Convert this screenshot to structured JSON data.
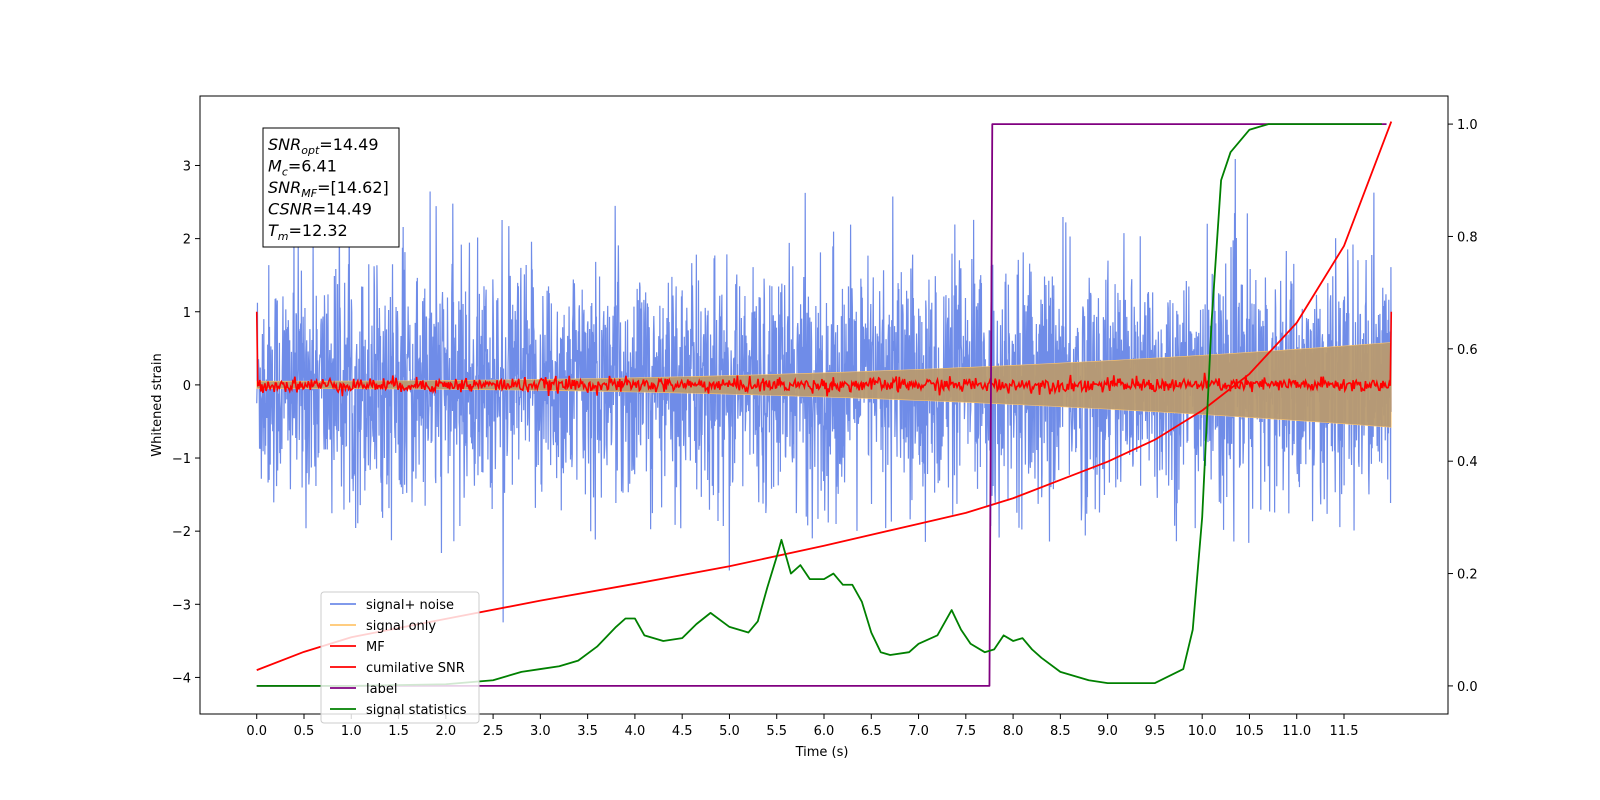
{
  "chart_data": {
    "type": "line",
    "title": "",
    "xlabel": "Time (s)",
    "ylabel_left": "Whitened strain",
    "ylabel_right": "",
    "xlim": [
      -0.6,
      12.6
    ],
    "ylim_left": [
      -4.5,
      3.95
    ],
    "ylim_right": [
      -0.05,
      1.05
    ],
    "x_ticks": [
      "0.0",
      "0.5",
      "1.0",
      "1.5",
      "2.0",
      "2.5",
      "3.0",
      "3.5",
      "4.0",
      "4.5",
      "5.0",
      "5.5",
      "6.0",
      "6.5",
      "7.0",
      "7.5",
      "8.0",
      "8.5",
      "9.0",
      "9.5",
      "10.0",
      "10.5",
      "11.0",
      "11.5"
    ],
    "y_ticks_left": [
      "3",
      "2",
      "1",
      "0",
      "−1",
      "−2",
      "−3",
      "−4"
    ],
    "y_ticks_right": [
      "1.0",
      "0.8",
      "0.6",
      "0.4",
      "0.2",
      "0.0"
    ],
    "legend_placement": "lower-left",
    "grid": false,
    "info_box": [
      {
        "sym": "SNR",
        "sub": "opt",
        "value": "=14.49"
      },
      {
        "sym": "M",
        "sub": "c",
        "value": "=6.41"
      },
      {
        "sym": "SNR",
        "sub": "MF",
        "value": "=[14.62]"
      },
      {
        "sym": "CSNR",
        "sub": "",
        "value": "=14.49"
      },
      {
        "sym": "T",
        "sub": "m",
        "value": "=12.32"
      }
    ],
    "series": [
      {
        "name": "signal+ noise",
        "axis": "left",
        "color": "#6f8ce8",
        "description_values": {
          "x_range": [
            0,
            12
          ],
          "std": 0.95
        }
      },
      {
        "name": "signal only",
        "axis": "left",
        "color": "#ffc66e",
        "description_values": {
          "x_range": [
            0,
            12
          ],
          "amplitude_start": 0.05,
          "amplitude_end": 0.58
        }
      },
      {
        "name": "MF",
        "axis": "left",
        "color": "#ff0000",
        "description_values": {
          "x_range": [
            0,
            12
          ],
          "start": 1.0,
          "end": 1.0,
          "noise": 0.05
        }
      },
      {
        "name": "cumilative SNR",
        "axis": "left",
        "color": "#ff0000",
        "x": [
          0,
          0.5,
          1,
          2,
          3,
          4,
          5,
          6,
          7,
          7.5,
          8,
          8.5,
          9,
          9.5,
          10,
          10.5,
          11,
          11.5,
          12
        ],
        "y": [
          -3.9,
          -3.65,
          -3.45,
          -3.2,
          -2.95,
          -2.72,
          -2.48,
          -2.2,
          -1.9,
          -1.75,
          -1.55,
          -1.3,
          -1.05,
          -0.75,
          -0.35,
          0.15,
          0.85,
          1.9,
          3.6
        ]
      },
      {
        "name": "label",
        "axis": "right",
        "color": "#800080",
        "x": [
          0,
          7.75,
          7.78,
          11.95
        ],
        "y": [
          0.0,
          0.0,
          1.0,
          1.0
        ]
      },
      {
        "name": "signal statistics",
        "axis": "right",
        "color": "#008000",
        "x": [
          0,
          1,
          2,
          2.5,
          2.8,
          3.0,
          3.2,
          3.4,
          3.6,
          3.8,
          3.9,
          4.0,
          4.1,
          4.3,
          4.5,
          4.65,
          4.8,
          5.0,
          5.2,
          5.3,
          5.4,
          5.5,
          5.55,
          5.65,
          5.75,
          5.85,
          6.0,
          6.1,
          6.2,
          6.3,
          6.4,
          6.5,
          6.6,
          6.7,
          6.9,
          7.0,
          7.2,
          7.35,
          7.45,
          7.55,
          7.7,
          7.8,
          7.9,
          8.0,
          8.1,
          8.2,
          8.3,
          8.5,
          8.8,
          9.0,
          9.5,
          9.8,
          9.9,
          10.0,
          10.1,
          10.2,
          10.3,
          10.5,
          10.7,
          11.0,
          11.5,
          11.9
        ],
        "y": [
          0.0,
          0.0,
          0.003,
          0.01,
          0.025,
          0.03,
          0.035,
          0.045,
          0.07,
          0.105,
          0.12,
          0.12,
          0.09,
          0.08,
          0.085,
          0.11,
          0.13,
          0.105,
          0.095,
          0.115,
          0.175,
          0.23,
          0.26,
          0.2,
          0.215,
          0.19,
          0.19,
          0.2,
          0.18,
          0.18,
          0.15,
          0.095,
          0.06,
          0.055,
          0.06,
          0.075,
          0.09,
          0.135,
          0.1,
          0.075,
          0.06,
          0.065,
          0.09,
          0.08,
          0.085,
          0.065,
          0.05,
          0.025,
          0.01,
          0.005,
          0.005,
          0.03,
          0.1,
          0.3,
          0.65,
          0.9,
          0.95,
          0.99,
          1.0,
          1.0,
          1.0,
          1.0
        ]
      }
    ]
  }
}
